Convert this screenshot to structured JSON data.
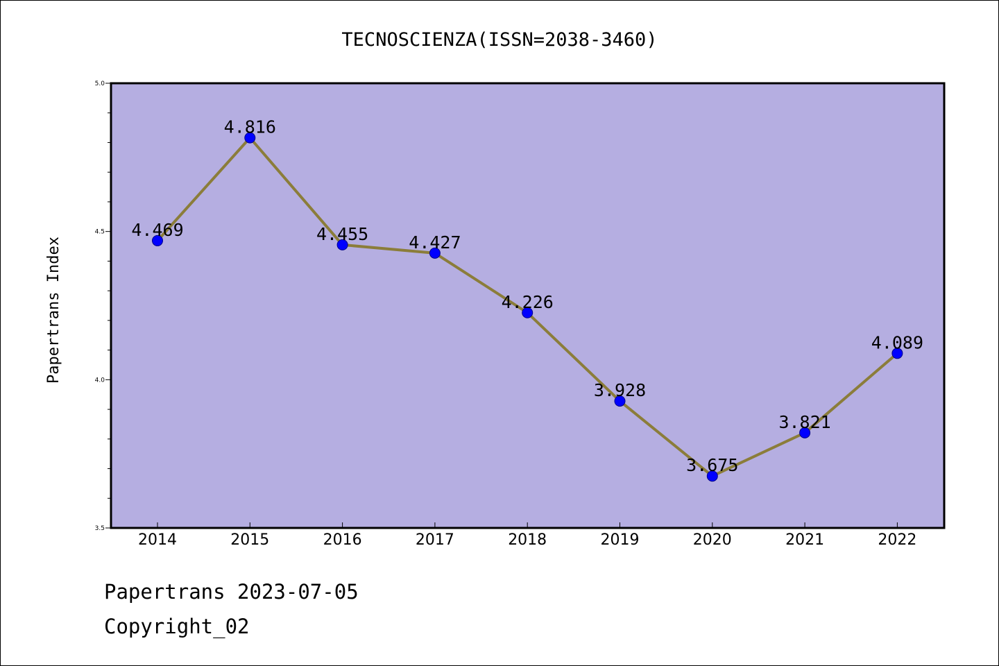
{
  "chart_data": {
    "type": "line",
    "title": "TECNOSCIENZA(ISSN=2038-3460)",
    "xlabel": "",
    "ylabel": "Papertrans Index",
    "categories": [
      "2014",
      "2015",
      "2016",
      "2017",
      "2018",
      "2019",
      "2020",
      "2021",
      "2022"
    ],
    "values": [
      4.469,
      4.816,
      4.455,
      4.427,
      4.226,
      3.928,
      3.675,
      3.821,
      4.089
    ],
    "data_labels": [
      "4.469",
      "4.816",
      "4.455",
      "4.427",
      "4.226",
      "3.928",
      "3.675",
      "3.821",
      "4.089"
    ],
    "ylim": [
      3.5,
      5.0
    ],
    "yticks": [
      "3.5",
      "4.0",
      "4.5",
      "5.0"
    ],
    "grid": false,
    "colors": {
      "plot_background": "#b5aee1",
      "line": "#8b7d3a",
      "marker": "#0000ff"
    }
  },
  "footer": {
    "date_line": "Papertrans 2023-07-05",
    "copyright_line": "Copyright_02"
  }
}
